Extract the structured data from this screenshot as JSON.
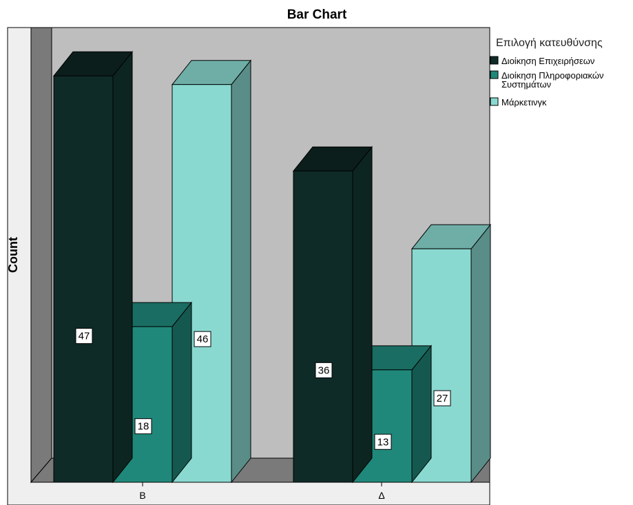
{
  "chart_data": {
    "type": "bar",
    "title": "Bar Chart",
    "ylabel": "Count",
    "xlabel": "",
    "categories": [
      "B",
      "Δ"
    ],
    "ylim": [
      0,
      50
    ],
    "legend_title": "Επιλογή κατευθύνσης",
    "legend_position": "right",
    "series": [
      {
        "name": "Διοίκηση Επιχειρήσεων",
        "values": [
          47,
          36
        ],
        "color": "#0f2b27"
      },
      {
        "name": "Διοίκηση Πληροφοριακών Συστημάτων",
        "values": [
          18,
          13
        ],
        "color": "#20887a"
      },
      {
        "name": "Μάρκετινγκ",
        "values": [
          46,
          27
        ],
        "color": "#8ad9d0"
      }
    ],
    "legend_lines": [
      [
        "Διοίκηση Επιχειρήσεων"
      ],
      [
        "Διοίκηση Πληροφοριακών",
        "Συστημάτων"
      ],
      [
        "Μάρκετινγκ"
      ]
    ],
    "style": {
      "three_d": true,
      "back_wall_color": "#bebebe",
      "floor_color": "#7a7a7a",
      "side_wall_color": "#7a7a7a",
      "frame_color": "#efefef"
    }
  }
}
